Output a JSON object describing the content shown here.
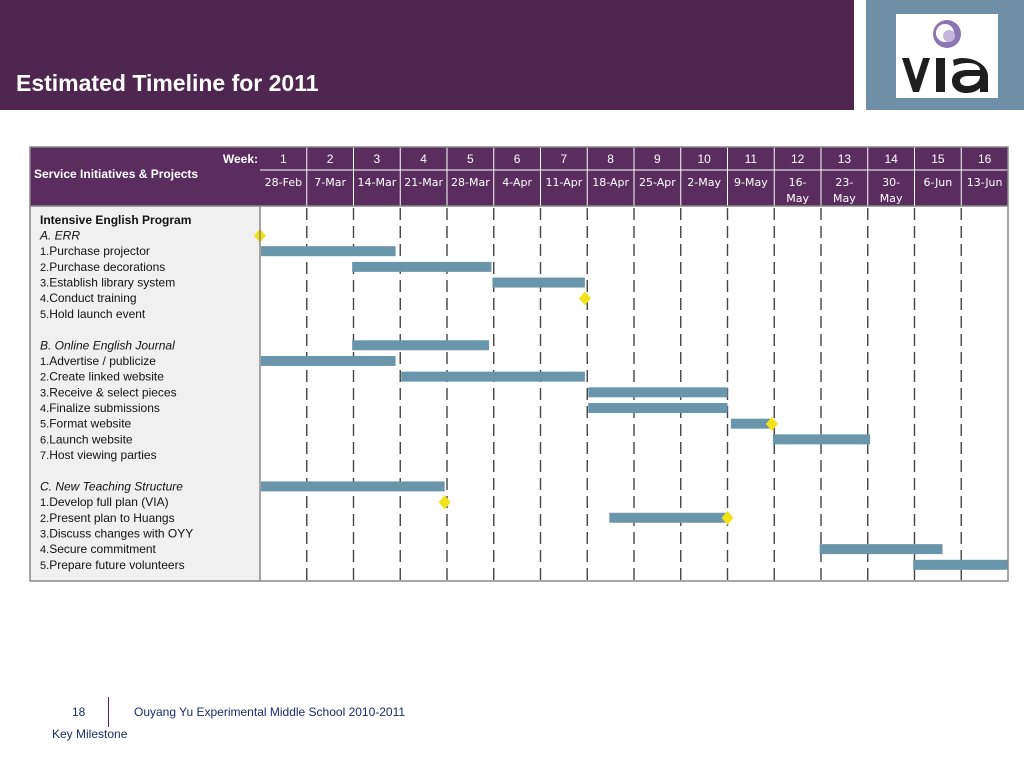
{
  "title": "Estimated Timeline for 2011",
  "logo_text": "VIA",
  "header_cells": {
    "week_label": "Week:",
    "section_label": "Service Initiatives & Projects"
  },
  "weeks": [
    {
      "num": "1",
      "date": [
        "28-Feb"
      ]
    },
    {
      "num": "2",
      "date": [
        "7-Mar"
      ]
    },
    {
      "num": "3",
      "date": [
        "14-Mar"
      ]
    },
    {
      "num": "4",
      "date": [
        "21-Mar"
      ]
    },
    {
      "num": "5",
      "date": [
        "28-Mar"
      ]
    },
    {
      "num": "6",
      "date": [
        "4-Apr"
      ]
    },
    {
      "num": "7",
      "date": [
        "11-Apr"
      ]
    },
    {
      "num": "8",
      "date": [
        "18-Apr"
      ]
    },
    {
      "num": "9",
      "date": [
        "25-Apr"
      ]
    },
    {
      "num": "10",
      "date": [
        "2-May"
      ]
    },
    {
      "num": "11",
      "date": [
        "9-May"
      ]
    },
    {
      "num": "12",
      "date": [
        "16-",
        "May"
      ]
    },
    {
      "num": "13",
      "date": [
        "23-",
        "May"
      ]
    },
    {
      "num": "14",
      "date": [
        "30-",
        "May"
      ]
    },
    {
      "num": "15",
      "date": [
        "6-Jun"
      ]
    },
    {
      "num": "16",
      "date": [
        "13-Jun"
      ]
    }
  ],
  "rows": [
    {
      "label": "Intensive English Program",
      "style": "bold"
    },
    {
      "label": "A. ERR",
      "style": "italic"
    },
    {
      "num": "1.",
      "label": "Purchase projector"
    },
    {
      "num": "2.",
      "label": "Purchase decorations"
    },
    {
      "num": "3.",
      "label": "Establish library system"
    },
    {
      "num": "4.",
      "label": "Conduct training"
    },
    {
      "num": "5.",
      "label": "Hold launch event"
    },
    {
      "label": "",
      "style": "blank"
    },
    {
      "label": "B. Online English Journal",
      "style": "italic"
    },
    {
      "num": "1.",
      "label": "Advertise / publicize"
    },
    {
      "num": "2.",
      "label": "Create linked website"
    },
    {
      "num": "3.",
      "label": "Receive & select pieces"
    },
    {
      "num": "4.",
      "label": "Finalize submissions"
    },
    {
      "num": "5.",
      "label": "Format website"
    },
    {
      "num": "6.",
      "label": "Launch website"
    },
    {
      "num": "7.",
      "label": "Host viewing parties"
    },
    {
      "label": "",
      "style": "blank"
    },
    {
      "label": "C. New Teaching Structure",
      "style": "italic"
    },
    {
      "num": "1.",
      "label": "Develop full plan (VIA)"
    },
    {
      "num": "2.",
      "label": "Present plan to Huangs"
    },
    {
      "num": "3.",
      "label": "Discuss changes with OYY"
    },
    {
      "num": "4.",
      "label": "Secure commitment"
    },
    {
      "num": "5.",
      "label": "Prepare future volunteers"
    }
  ],
  "bars": [
    {
      "task": "Purchase projector",
      "start_week": 1,
      "end_week": 3.9
    },
    {
      "task": "Purchase decorations",
      "start_week": 2.95,
      "end_week": 5.95
    },
    {
      "task": "Establish library system",
      "start_week": 5.95,
      "end_week": 7.95
    },
    {
      "task": "Online English Journal",
      "start_week": 2.95,
      "end_week": 5.9
    },
    {
      "task": "Advertise / publicize",
      "start_week": 1,
      "end_week": 3.9
    },
    {
      "task": "Create linked website",
      "start_week": 4,
      "end_week": 7.95
    },
    {
      "task": "Receive & select pieces",
      "start_week": 8,
      "end_week": 11.0
    },
    {
      "task": "Finalize submissions",
      "start_week": 8,
      "end_week": 11.0
    },
    {
      "task": "Format website",
      "start_week": 11.05,
      "end_week": 11.95
    },
    {
      "task": "Launch website",
      "start_week": 11.95,
      "end_week": 14.05
    },
    {
      "task": "New Teaching Structure",
      "start_week": 1,
      "end_week": 4.95
    },
    {
      "task": "Present plan to Huangs",
      "start_week": 8.45,
      "end_week": 11.0
    },
    {
      "task": "Secure commitment",
      "start_week": 12.95,
      "end_week": 15.6
    },
    {
      "task": "Prepare future volunteers",
      "start_week": 14.95,
      "end_week": 17.0
    }
  ],
  "milestones": [
    {
      "task": "ERR start",
      "week": 1,
      "row_after": 1
    },
    {
      "task": "Conduct training",
      "week": 7.95,
      "row_after": 5
    },
    {
      "task": "Format website",
      "week": 11.95,
      "row_after": 13
    },
    {
      "task": "Develop full plan (VIA)",
      "week": 4.95,
      "row_after": 18
    },
    {
      "task": "Present plan to Huangs",
      "week": 11.0,
      "row_after": 19
    }
  ],
  "footer": {
    "page_number": "18",
    "school": "Ouyang Yu Experimental Middle School  2010-2011",
    "legend": "Key Milestone"
  },
  "colors": {
    "header": "#4e2650",
    "logo_panel": "#6e8fa6",
    "table_header": "#5a2d5e",
    "bar": "#6a96ab",
    "milestone": "#f2e21a",
    "label_column_bg": "#f0f0f0"
  }
}
